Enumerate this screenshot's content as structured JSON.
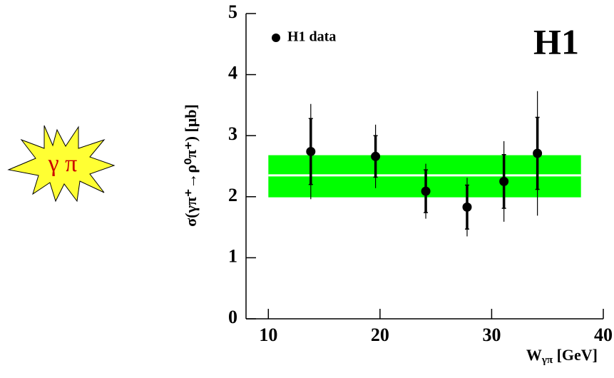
{
  "chart_data": {
    "type": "scatter",
    "badge_label": "γ π",
    "annotation": "H1",
    "y_label": "σ(γπ⁺→ρ⁰π⁺) [μb]",
    "x_label": {
      "main": "W",
      "sub": "γπ",
      "unit": " [GeV]"
    },
    "xlim": [
      8,
      40
    ],
    "xticks": [
      10,
      20,
      30,
      40
    ],
    "ylim": [
      0,
      5
    ],
    "yticks": [
      0,
      1,
      2,
      3,
      4,
      5
    ],
    "band": {
      "x": [
        10,
        38
      ],
      "low": 1.99,
      "high": 2.68,
      "center": 2.35,
      "color": "#00ff00",
      "line_color": "#ffffff"
    },
    "series": [
      {
        "name": "H1 data",
        "color": "#000000",
        "x": [
          13.8,
          19.6,
          24.1,
          27.8,
          31.1,
          34.1
        ],
        "values": [
          2.74,
          2.66,
          2.09,
          1.83,
          2.25,
          2.71
        ],
        "stat_errors": [
          0.54,
          0.34,
          0.35,
          0.36,
          0.44,
          0.59
        ],
        "total_errors": [
          0.78,
          0.52,
          0.45,
          0.48,
          0.66,
          1.02
        ]
      }
    ]
  }
}
